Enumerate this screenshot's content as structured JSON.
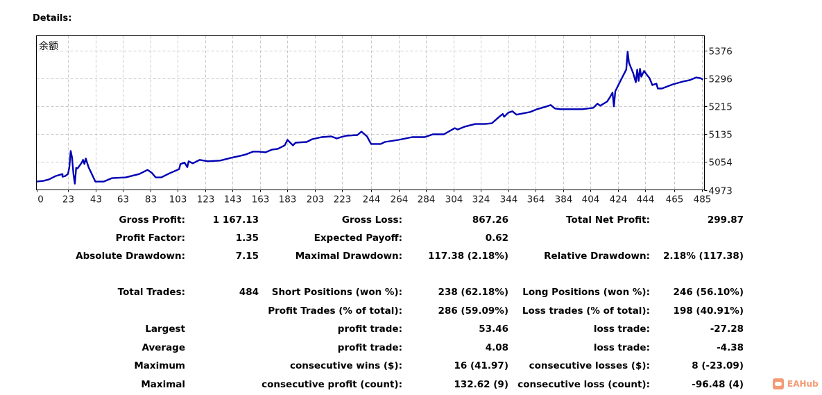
{
  "header": {
    "title": "Details:"
  },
  "chart_data": {
    "type": "line",
    "title": "余额",
    "xlabel": "",
    "ylabel": "",
    "xlim": [
      0,
      487
    ],
    "ylim": [
      4973,
      5420
    ],
    "x_ticks": [
      0,
      23,
      43,
      63,
      83,
      103,
      123,
      143,
      163,
      183,
      203,
      223,
      244,
      264,
      284,
      304,
      324,
      344,
      364,
      384,
      404,
      424,
      444,
      465,
      485
    ],
    "x_tick_labels": [
      "0",
      "23",
      "43",
      "63",
      "83",
      "103",
      "123",
      "143",
      "163",
      "183",
      "203",
      "223",
      "244",
      "264",
      "284",
      "304",
      "324",
      "344",
      "364",
      "384",
      "404",
      "424",
      "444",
      "465",
      "485"
    ],
    "y_ticks": [
      4973,
      5054,
      5135,
      5215,
      5296,
      5376
    ],
    "y_tick_labels": [
      "4973",
      "5054",
      "5135",
      "5215",
      "5296",
      "5376"
    ],
    "grid": true,
    "line_color": "#0000b4",
    "series": [
      {
        "name": "余额",
        "points": [
          [
            0,
            4997
          ],
          [
            5,
            4999
          ],
          [
            9,
            5003
          ],
          [
            14,
            5013
          ],
          [
            19,
            5019
          ],
          [
            19,
            5011
          ],
          [
            21,
            5013
          ],
          [
            23,
            5019
          ],
          [
            24,
            5039
          ],
          [
            25,
            5086
          ],
          [
            26,
            5066
          ],
          [
            27,
            5019
          ],
          [
            28,
            4991
          ],
          [
            29,
            5037
          ],
          [
            30,
            5035
          ],
          [
            33,
            5052
          ],
          [
            34,
            5060
          ],
          [
            35,
            5048
          ],
          [
            36,
            5064
          ],
          [
            38,
            5039
          ],
          [
            43,
            4997
          ],
          [
            49,
            4997
          ],
          [
            55,
            5007
          ],
          [
            65,
            5009
          ],
          [
            75,
            5019
          ],
          [
            81,
            5031
          ],
          [
            84,
            5023
          ],
          [
            87,
            5009
          ],
          [
            91,
            5009
          ],
          [
            97,
            5021
          ],
          [
            104,
            5033
          ],
          [
            105,
            5048
          ],
          [
            108,
            5052
          ],
          [
            110,
            5039
          ],
          [
            111,
            5056
          ],
          [
            114,
            5050
          ],
          [
            119,
            5060
          ],
          [
            125,
            5056
          ],
          [
            134,
            5058
          ],
          [
            142,
            5066
          ],
          [
            149,
            5072
          ],
          [
            153,
            5076
          ],
          [
            158,
            5084
          ],
          [
            162,
            5084
          ],
          [
            167,
            5082
          ],
          [
            172,
            5090
          ],
          [
            176,
            5092
          ],
          [
            181,
            5102
          ],
          [
            183,
            5118
          ],
          [
            187,
            5102
          ],
          [
            189,
            5110
          ],
          [
            197,
            5112
          ],
          [
            201,
            5120
          ],
          [
            208,
            5126
          ],
          [
            215,
            5128
          ],
          [
            219,
            5122
          ],
          [
            222,
            5126
          ],
          [
            226,
            5130
          ],
          [
            234,
            5132
          ],
          [
            237,
            5142
          ],
          [
            241,
            5128
          ],
          [
            244,
            5106
          ],
          [
            251,
            5106
          ],
          [
            254,
            5112
          ],
          [
            264,
            5118
          ],
          [
            274,
            5126
          ],
          [
            283,
            5126
          ],
          [
            289,
            5134
          ],
          [
            297,
            5134
          ],
          [
            305,
            5152
          ],
          [
            307,
            5148
          ],
          [
            312,
            5156
          ],
          [
            320,
            5164
          ],
          [
            327,
            5164
          ],
          [
            332,
            5166
          ],
          [
            338,
            5187
          ],
          [
            340,
            5193
          ],
          [
            341,
            5185
          ],
          [
            344,
            5197
          ],
          [
            347,
            5201
          ],
          [
            350,
            5191
          ],
          [
            360,
            5199
          ],
          [
            365,
            5207
          ],
          [
            372,
            5215
          ],
          [
            375,
            5219
          ],
          [
            378,
            5209
          ],
          [
            382,
            5207
          ],
          [
            398,
            5207
          ],
          [
            406,
            5211
          ],
          [
            409,
            5223
          ],
          [
            411,
            5217
          ],
          [
            416,
            5229
          ],
          [
            418,
            5241
          ],
          [
            420,
            5255
          ],
          [
            421,
            5215
          ],
          [
            422,
            5259
          ],
          [
            426,
            5291
          ],
          [
            430,
            5322
          ],
          [
            431,
            5374
          ],
          [
            432,
            5342
          ],
          [
            435,
            5312
          ],
          [
            437,
            5285
          ],
          [
            438,
            5322
          ],
          [
            439,
            5289
          ],
          [
            440,
            5324
          ],
          [
            441,
            5301
          ],
          [
            443,
            5318
          ],
          [
            445,
            5307
          ],
          [
            447,
            5297
          ],
          [
            449,
            5277
          ],
          [
            452,
            5281
          ],
          [
            453,
            5267
          ],
          [
            456,
            5267
          ],
          [
            464,
            5279
          ],
          [
            471,
            5287
          ],
          [
            476,
            5291
          ],
          [
            481,
            5299
          ],
          [
            484,
            5297
          ],
          [
            486,
            5293
          ]
        ]
      }
    ]
  },
  "stats": {
    "row1": {
      "gross_profit_label": "Gross Profit:",
      "gross_profit": "1 167.13",
      "gross_loss_label": "Gross Loss:",
      "gross_loss": "867.26",
      "net_profit_label": "Total Net Profit:",
      "net_profit": "299.87"
    },
    "row2": {
      "profit_factor_label": "Profit Factor:",
      "profit_factor": "1.35",
      "expected_payoff_label": "Expected Payoff:",
      "expected_payoff": "0.62"
    },
    "row3": {
      "abs_dd_label": "Absolute Drawdown:",
      "abs_dd": "7.15",
      "max_dd_label": "Maximal Drawdown:",
      "max_dd": "117.38 (2.18%)",
      "rel_dd_label": "Relative Drawdown:",
      "rel_dd": "2.18% (117.38)"
    },
    "row4": {
      "total_trades_label": "Total Trades:",
      "total_trades": "484",
      "short_label": "Short Positions (won %):",
      "short": "238 (62.18%)",
      "long_label": "Long Positions (won %):",
      "long": "246 (56.10%)"
    },
    "row5": {
      "profit_trades_label": "Profit Trades (% of total):",
      "profit_trades": "286 (59.09%)",
      "loss_trades_label": "Loss trades (% of total):",
      "loss_trades": "198 (40.91%)"
    },
    "row6": {
      "label": "Largest",
      "profit_label": "profit trade:",
      "profit": "53.46",
      "loss_label": "loss trade:",
      "loss": "-27.28"
    },
    "row7": {
      "label": "Average",
      "profit_label": "profit trade:",
      "profit": "4.08",
      "loss_label": "loss trade:",
      "loss": "-4.38"
    },
    "row8": {
      "label": "Maximum",
      "profit_label": "consecutive wins ($):",
      "profit": "16 (41.97)",
      "loss_label": "consecutive losses ($):",
      "loss": "8 (-23.09)"
    },
    "row9": {
      "label": "Maximal",
      "profit_label": "consecutive profit (count):",
      "profit": "132.62 (9)",
      "loss_label": "consecutive loss (count):",
      "loss": "-96.48 (4)"
    }
  },
  "watermark": {
    "text": "EAHub"
  }
}
